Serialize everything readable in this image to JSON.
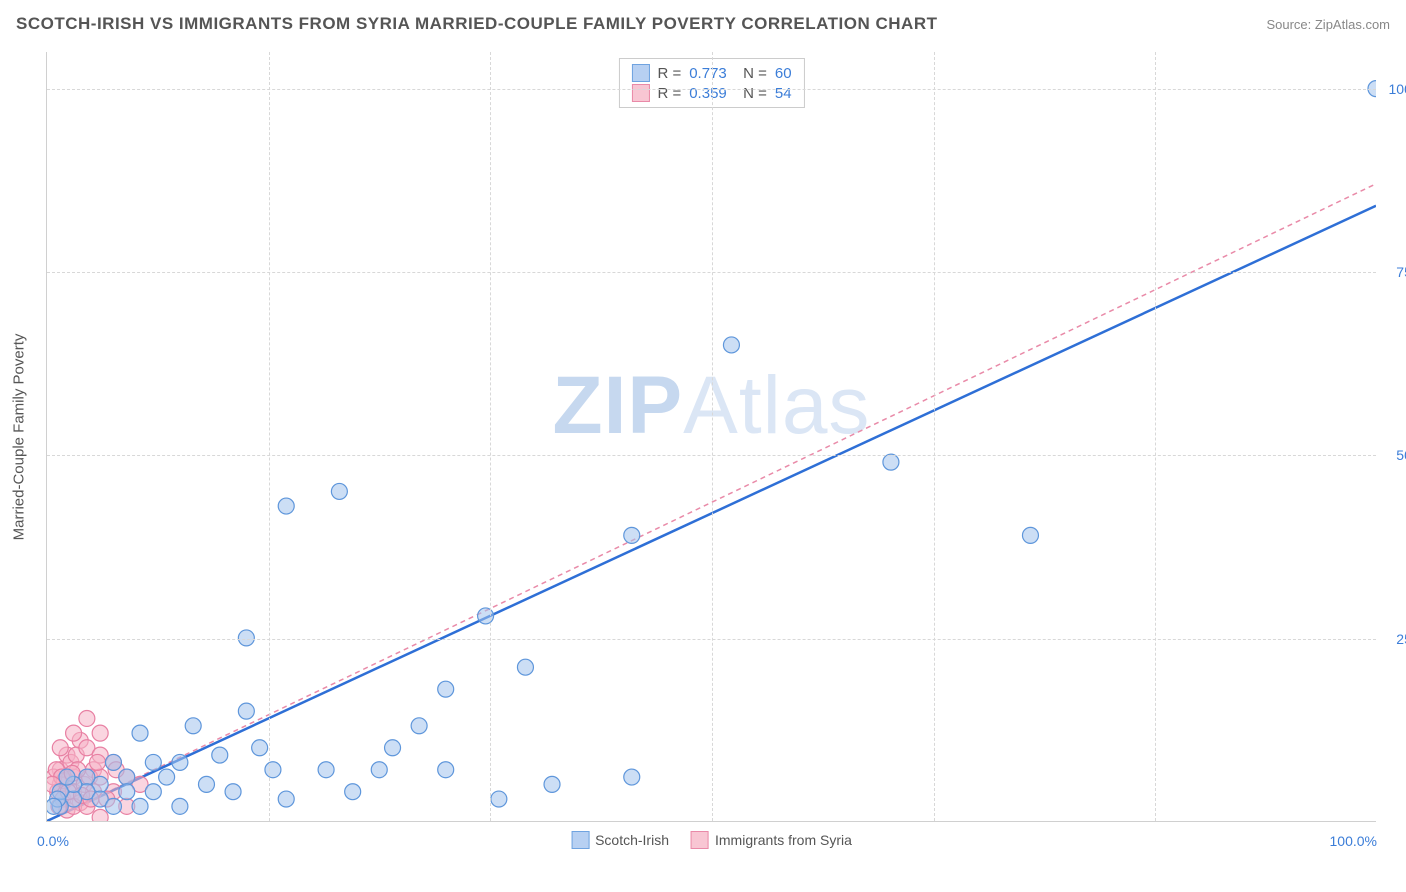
{
  "title": "SCOTCH-IRISH VS IMMIGRANTS FROM SYRIA MARRIED-COUPLE FAMILY POVERTY CORRELATION CHART",
  "source": "Source: ZipAtlas.com",
  "watermark_zip": "ZIP",
  "watermark_atlas": "Atlas",
  "chart": {
    "type": "scatter",
    "y_axis_label": "Married-Couple Family Poverty",
    "xlim": [
      0,
      100
    ],
    "ylim": [
      0,
      105
    ],
    "x_ticks": [
      0,
      100
    ],
    "y_ticks": [
      25,
      50,
      75,
      100
    ],
    "x_tick_labels": [
      "0.0%",
      "100.0%"
    ],
    "y_tick_labels": [
      "25.0%",
      "50.0%",
      "75.0%",
      "100.0%"
    ],
    "grid_y": [
      25,
      50,
      75,
      100
    ],
    "grid_x": [
      16.7,
      33.3,
      50,
      66.7,
      83.3
    ],
    "grid_color": "#d8d8d8",
    "background_color": "#ffffff",
    "marker_radius": 8,
    "series": [
      {
        "name": "Scotch-Irish",
        "color_fill": "#a2c2ec",
        "color_stroke": "#5e96db",
        "r": 0.773,
        "n": 60,
        "trend": {
          "style": "solid",
          "color": "#2e6fd6",
          "width": 2.5,
          "x1": 0,
          "y1": 0,
          "x2": 100,
          "y2": 84
        },
        "points": [
          [
            100,
            100
          ],
          [
            63.5,
            49
          ],
          [
            74,
            39
          ],
          [
            51.5,
            65
          ],
          [
            44,
            39
          ],
          [
            33,
            28
          ],
          [
            22,
            45
          ],
          [
            18,
            43
          ],
          [
            15,
            25
          ],
          [
            36,
            21
          ],
          [
            28,
            13
          ],
          [
            30,
            7
          ],
          [
            34,
            3
          ],
          [
            38,
            5
          ],
          [
            44,
            6
          ],
          [
            15,
            15
          ],
          [
            16,
            10
          ],
          [
            17,
            7
          ],
          [
            25,
            7
          ],
          [
            21,
            7
          ],
          [
            11,
            13
          ],
          [
            13,
            9
          ],
          [
            10,
            8
          ],
          [
            8,
            8
          ],
          [
            9,
            6
          ],
          [
            7,
            12
          ],
          [
            12,
            5
          ],
          [
            14,
            4
          ],
          [
            6,
            6
          ],
          [
            8,
            4
          ],
          [
            6,
            4
          ],
          [
            4,
            5
          ],
          [
            5,
            8
          ],
          [
            3,
            6
          ],
          [
            3,
            4
          ],
          [
            4,
            3
          ],
          [
            5,
            2
          ],
          [
            7,
            2
          ],
          [
            2,
            3
          ],
          [
            1,
            2
          ],
          [
            2,
            5
          ],
          [
            1,
            4
          ],
          [
            1.5,
            6
          ],
          [
            0.8,
            3
          ],
          [
            0.5,
            2
          ],
          [
            18,
            3
          ],
          [
            23,
            4
          ],
          [
            26,
            10
          ],
          [
            30,
            18
          ],
          [
            10,
            2
          ]
        ]
      },
      {
        "name": "Immigrants from Syria",
        "color_fill": "#f5b3c6",
        "color_stroke": "#e880a3",
        "r": 0.359,
        "n": 54,
        "trend": {
          "style": "dashed",
          "color": "#e98aa8",
          "width": 1.5,
          "x1": 0,
          "y1": 0,
          "x2": 100,
          "y2": 87
        },
        "points": [
          [
            1,
            5
          ],
          [
            2,
            6
          ],
          [
            1.5,
            9
          ],
          [
            2.5,
            11
          ],
          [
            3,
            14
          ],
          [
            3.5,
            7
          ],
          [
            0.8,
            4
          ],
          [
            1.2,
            3
          ],
          [
            2,
            4
          ],
          [
            2.8,
            5
          ],
          [
            3.2,
            6
          ],
          [
            1,
            7
          ],
          [
            1.8,
            8
          ],
          [
            0.5,
            6
          ],
          [
            2.2,
            9
          ],
          [
            3,
            10
          ],
          [
            4,
            12
          ],
          [
            3.5,
            4
          ],
          [
            2.5,
            2.5
          ],
          [
            1.5,
            1.5
          ],
          [
            0.7,
            7
          ],
          [
            1.3,
            5.5
          ],
          [
            2,
            2
          ],
          [
            4,
            6
          ],
          [
            5,
            4
          ],
          [
            4.5,
            3
          ],
          [
            2,
            12
          ],
          [
            3,
            2
          ],
          [
            1,
            10
          ],
          [
            5,
            8
          ],
          [
            4,
            9
          ],
          [
            6,
            6
          ],
          [
            7,
            5
          ],
          [
            4,
            0.5
          ],
          [
            6,
            2
          ],
          [
            2.3,
            7
          ],
          [
            1.1,
            6
          ],
          [
            0.9,
            2
          ],
          [
            1.6,
            4
          ],
          [
            3.8,
            8
          ],
          [
            2.6,
            3.5
          ],
          [
            1.9,
            6.5
          ],
          [
            0.4,
            5
          ],
          [
            3.3,
            3
          ],
          [
            5.2,
            7
          ]
        ]
      }
    ],
    "stats_legend": [
      {
        "swatch": "blue",
        "r": "0.773",
        "n": "60"
      },
      {
        "swatch": "pink",
        "r": "0.359",
        "n": "54"
      }
    ],
    "bottom_legend": [
      {
        "swatch": "blue",
        "label": "Scotch-Irish"
      },
      {
        "swatch": "pink",
        "label": "Immigrants from Syria"
      }
    ]
  }
}
